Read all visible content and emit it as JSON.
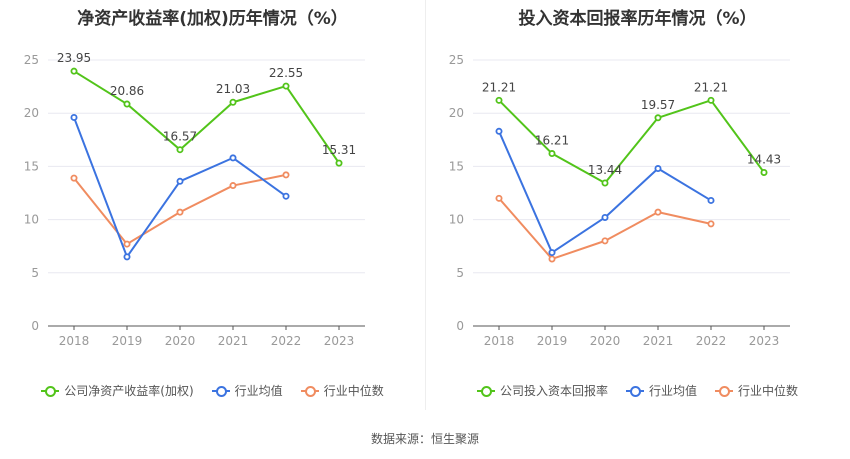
{
  "colors": {
    "company": "#52c41a",
    "industry_avg": "#3b73e0",
    "industry_median": "#f08c60",
    "grid": "#e8e8f0",
    "axis_text": "#999999",
    "label_text": "#444444"
  },
  "source": "数据来源：恒生聚源",
  "chart_data": [
    {
      "type": "line",
      "title": "净资产收益率(加权)历年情况（%）",
      "x": [
        "2018",
        "2019",
        "2020",
        "2021",
        "2022",
        "2023"
      ],
      "ylim": [
        0,
        25
      ],
      "yticks": [
        "0",
        "5",
        "10",
        "15",
        "20",
        "25"
      ],
      "grid": true,
      "legend_position": "bottom",
      "series": [
        {
          "name": "公司净资产收益率(加权)",
          "color_key": "company",
          "values": [
            23.95,
            20.86,
            16.57,
            21.03,
            22.55,
            15.31
          ],
          "labels": [
            "23.95",
            "20.86",
            "16.57",
            "21.03",
            "22.55",
            "15.31"
          ]
        },
        {
          "name": "行业均值",
          "color_key": "industry_avg",
          "values": [
            19.6,
            6.5,
            13.6,
            15.8,
            12.2,
            null
          ]
        },
        {
          "name": "行业中位数",
          "color_key": "industry_median",
          "values": [
            13.9,
            7.7,
            10.7,
            13.2,
            14.2,
            null
          ]
        }
      ]
    },
    {
      "type": "line",
      "title": "投入资本回报率历年情况（%）",
      "x": [
        "2018",
        "2019",
        "2020",
        "2021",
        "2022",
        "2023"
      ],
      "ylim": [
        0,
        25
      ],
      "yticks": [
        "0",
        "5",
        "10",
        "15",
        "20",
        "25"
      ],
      "grid": true,
      "legend_position": "bottom",
      "series": [
        {
          "name": "公司投入资本回报率",
          "color_key": "company",
          "values": [
            21.21,
            16.21,
            13.44,
            19.57,
            21.21,
            14.43
          ],
          "labels": [
            "21.21",
            "16.21",
            "13.44",
            "19.57",
            "21.21",
            "14.43"
          ]
        },
        {
          "name": "行业均值",
          "color_key": "industry_avg",
          "values": [
            18.3,
            6.9,
            10.2,
            14.8,
            11.8,
            null
          ]
        },
        {
          "name": "行业中位数",
          "color_key": "industry_median",
          "values": [
            12.0,
            6.3,
            8.0,
            10.7,
            9.6,
            null
          ]
        }
      ]
    }
  ]
}
